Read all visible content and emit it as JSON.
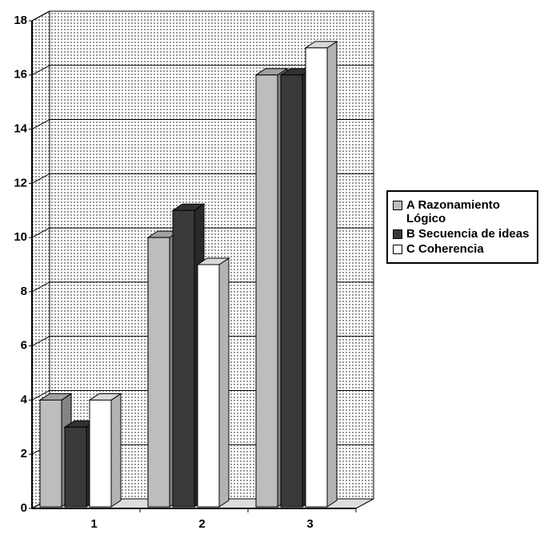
{
  "chart_data": {
    "type": "bar3d",
    "categories": [
      "1",
      "2",
      "3"
    ],
    "series": [
      {
        "name": "A Razonamiento Lógico",
        "color": "#bdbdbd",
        "values": [
          4,
          10,
          16
        ]
      },
      {
        "name": "B Secuencia de ideas",
        "color": "#3a3a3a",
        "values": [
          3,
          11,
          16
        ]
      },
      {
        "name": "C Coherencia",
        "color": "#ffffff",
        "values": [
          4,
          9,
          17
        ]
      }
    ],
    "ylim": [
      0,
      18
    ],
    "yticks": [
      0,
      2,
      4,
      6,
      8,
      10,
      12,
      14,
      16,
      18
    ],
    "grid": true,
    "legend": "right"
  }
}
